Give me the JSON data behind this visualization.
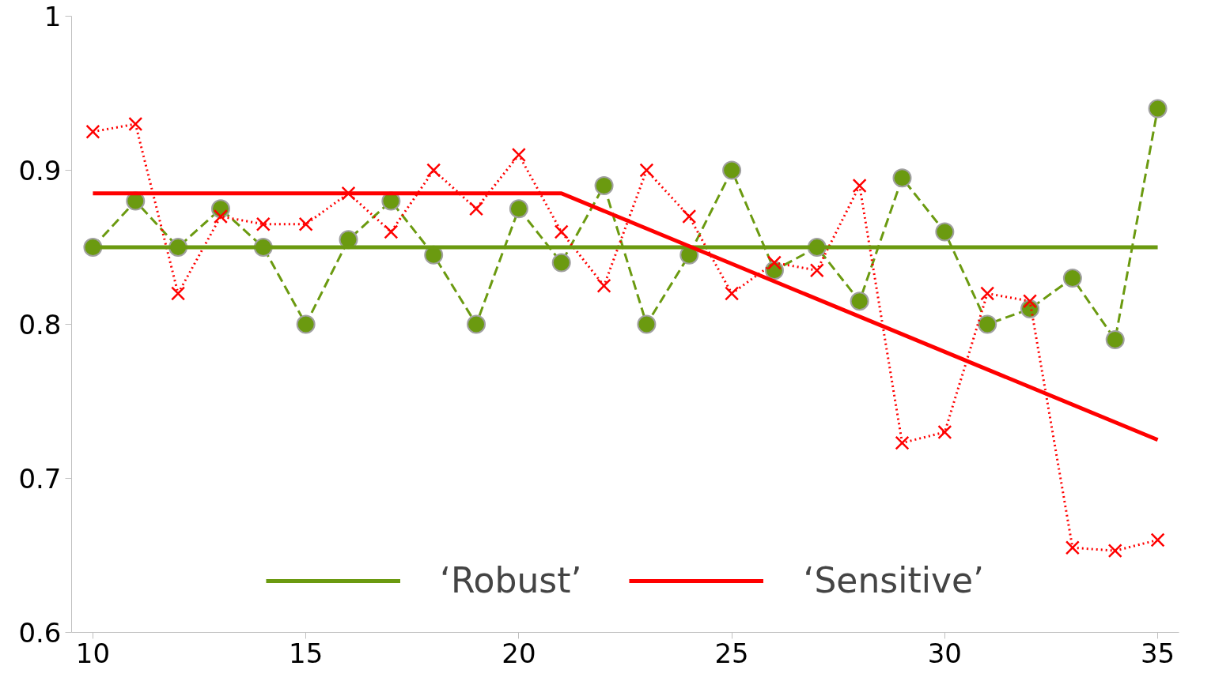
{
  "chart_data": {
    "type": "line",
    "x": [
      10,
      11,
      12,
      13,
      14,
      15,
      16,
      17,
      18,
      19,
      20,
      21,
      22,
      23,
      24,
      25,
      26,
      27,
      28,
      29,
      30,
      31,
      32,
      33,
      34,
      35
    ],
    "xlim": [
      9.5,
      35.5
    ],
    "xticks": [
      10,
      15,
      20,
      25,
      30,
      35
    ],
    "ylim": [
      0.6,
      1
    ],
    "yticks": [
      0.6,
      0.7,
      0.8,
      0.9,
      1
    ],
    "grid": false,
    "legend": "bottom",
    "series": [
      {
        "color": "#6b9a10",
        "marker": "circle",
        "line_style": "dashed",
        "values": [
          0.85,
          0.88,
          0.85,
          0.875,
          0.85,
          0.8,
          0.855,
          0.88,
          0.845,
          0.8,
          0.875,
          0.84,
          0.89,
          0.8,
          0.845,
          0.9,
          0.835,
          0.85,
          0.815,
          0.895,
          0.86,
          0.8,
          0.81,
          0.83,
          0.79,
          0.94
        ]
      },
      {
        "color": "#ff0000",
        "marker": "cross",
        "line_style": "dotted",
        "values": [
          0.925,
          0.93,
          0.82,
          0.87,
          0.865,
          0.865,
          0.885,
          0.86,
          0.9,
          0.875,
          0.91,
          0.86,
          0.825,
          0.9,
          0.87,
          0.82,
          0.84,
          0.835,
          0.89,
          0.723,
          0.73,
          0.82,
          0.815,
          0.655,
          0.653,
          0.66
        ]
      },
      {
        "name": "‘Robust’",
        "color": "#6b9a10",
        "marker": "none",
        "line_style": "solid",
        "x": [
          10,
          35
        ],
        "values": [
          0.85,
          0.85
        ]
      },
      {
        "name": "‘Sensitive’",
        "color": "#ff0000",
        "marker": "none",
        "line_style": "solid",
        "x": [
          10,
          21,
          35
        ],
        "values": [
          0.885,
          0.885,
          0.725
        ]
      }
    ]
  }
}
